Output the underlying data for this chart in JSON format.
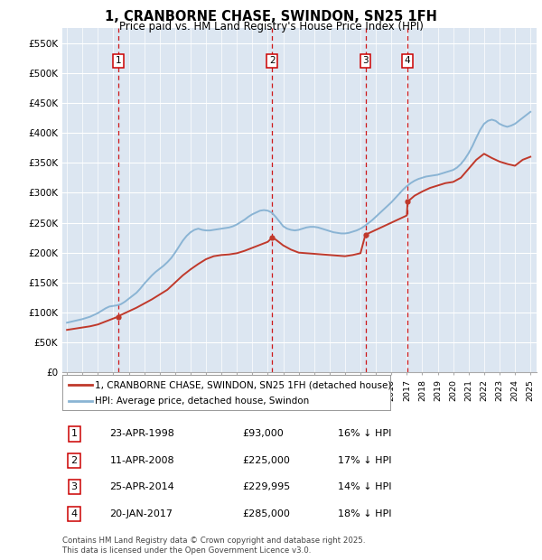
{
  "title": "1, CRANBORNE CHASE, SWINDON, SN25 1FH",
  "subtitle": "Price paid vs. HM Land Registry's House Price Index (HPI)",
  "ylim": [
    0,
    575000
  ],
  "yticks": [
    0,
    50000,
    100000,
    150000,
    200000,
    250000,
    300000,
    350000,
    400000,
    450000,
    500000,
    550000
  ],
  "ytick_labels": [
    "£0",
    "£50K",
    "£100K",
    "£150K",
    "£200K",
    "£250K",
    "£300K",
    "£350K",
    "£400K",
    "£450K",
    "£500K",
    "£550K"
  ],
  "plot_bg_color": "#dce6f1",
  "grid_color": "#ffffff",
  "hpi_color": "#8ab4d4",
  "price_color": "#c0392b",
  "vline_color": "#cc0000",
  "transactions": [
    {
      "num": 1,
      "price": 93000,
      "x": 1998.31
    },
    {
      "num": 2,
      "price": 225000,
      "x": 2008.28
    },
    {
      "num": 3,
      "price": 229995,
      "x": 2014.32
    },
    {
      "num": 4,
      "price": 285000,
      "x": 2017.05
    }
  ],
  "legend_property_label": "1, CRANBORNE CHASE, SWINDON, SN25 1FH (detached house)",
  "legend_hpi_label": "HPI: Average price, detached house, Swindon",
  "footer": "Contains HM Land Registry data © Crown copyright and database right 2025.\nThis data is licensed under the Open Government Licence v3.0.",
  "table_rows": [
    {
      "num": 1,
      "date": "23-APR-1998",
      "price": "£93,000",
      "pct": "16% ↓ HPI"
    },
    {
      "num": 2,
      "date": "11-APR-2008",
      "price": "£225,000",
      "pct": "17% ↓ HPI"
    },
    {
      "num": 3,
      "date": "25-APR-2014",
      "price": "£229,995",
      "pct": "14% ↓ HPI"
    },
    {
      "num": 4,
      "date": "20-JAN-2017",
      "price": "£285,000",
      "pct": "18% ↓ HPI"
    }
  ],
  "hpi_x": [
    1995.0,
    1995.25,
    1995.5,
    1995.75,
    1996.0,
    1996.25,
    1996.5,
    1996.75,
    1997.0,
    1997.25,
    1997.5,
    1997.75,
    1998.0,
    1998.25,
    1998.5,
    1998.75,
    1999.0,
    1999.25,
    1999.5,
    1999.75,
    2000.0,
    2000.25,
    2000.5,
    2000.75,
    2001.0,
    2001.25,
    2001.5,
    2001.75,
    2002.0,
    2002.25,
    2002.5,
    2002.75,
    2003.0,
    2003.25,
    2003.5,
    2003.75,
    2004.0,
    2004.25,
    2004.5,
    2004.75,
    2005.0,
    2005.25,
    2005.5,
    2005.75,
    2006.0,
    2006.25,
    2006.5,
    2006.75,
    2007.0,
    2007.25,
    2007.5,
    2007.75,
    2008.0,
    2008.25,
    2008.5,
    2008.75,
    2009.0,
    2009.25,
    2009.5,
    2009.75,
    2010.0,
    2010.25,
    2010.5,
    2010.75,
    2011.0,
    2011.25,
    2011.5,
    2011.75,
    2012.0,
    2012.25,
    2012.5,
    2012.75,
    2013.0,
    2013.25,
    2013.5,
    2013.75,
    2014.0,
    2014.25,
    2014.5,
    2014.75,
    2015.0,
    2015.25,
    2015.5,
    2015.75,
    2016.0,
    2016.25,
    2016.5,
    2016.75,
    2017.0,
    2017.25,
    2017.5,
    2017.75,
    2018.0,
    2018.25,
    2018.5,
    2018.75,
    2019.0,
    2019.25,
    2019.5,
    2019.75,
    2020.0,
    2020.25,
    2020.5,
    2020.75,
    2021.0,
    2021.25,
    2021.5,
    2021.75,
    2022.0,
    2022.25,
    2022.5,
    2022.75,
    2023.0,
    2023.25,
    2023.5,
    2023.75,
    2024.0,
    2024.25,
    2024.5,
    2024.75,
    2025.0
  ],
  "hpi_y": [
    83000,
    84500,
    86000,
    87500,
    89000,
    91000,
    93000,
    96000,
    99000,
    103000,
    107000,
    110000,
    111000,
    112000,
    114000,
    118000,
    123000,
    128000,
    133000,
    140000,
    148000,
    155000,
    162000,
    168000,
    173000,
    178000,
    184000,
    191000,
    200000,
    210000,
    220000,
    228000,
    234000,
    238000,
    240000,
    238000,
    237000,
    237000,
    238000,
    239000,
    240000,
    241000,
    242000,
    244000,
    247000,
    251000,
    255000,
    260000,
    264000,
    267000,
    270000,
    271000,
    270000,
    267000,
    260000,
    252000,
    244000,
    240000,
    238000,
    237000,
    238000,
    240000,
    242000,
    243000,
    243000,
    242000,
    240000,
    238000,
    236000,
    234000,
    233000,
    232000,
    232000,
    233000,
    235000,
    237000,
    240000,
    244000,
    249000,
    254000,
    260000,
    266000,
    272000,
    278000,
    284000,
    291000,
    298000,
    305000,
    311000,
    316000,
    320000,
    323000,
    325000,
    327000,
    328000,
    329000,
    330000,
    332000,
    334000,
    336000,
    338000,
    342000,
    348000,
    356000,
    366000,
    378000,
    392000,
    405000,
    415000,
    420000,
    422000,
    420000,
    415000,
    412000,
    410000,
    412000,
    415000,
    420000,
    425000,
    430000,
    435000
  ],
  "price_x": [
    1995.0,
    1995.5,
    1996.0,
    1996.5,
    1997.0,
    1997.5,
    1998.0,
    1998.31,
    1998.5,
    1999.0,
    1999.5,
    2000.0,
    2000.5,
    2001.0,
    2001.5,
    2002.0,
    2002.5,
    2003.0,
    2003.5,
    2004.0,
    2004.5,
    2005.0,
    2005.5,
    2006.0,
    2006.5,
    2007.0,
    2007.5,
    2008.0,
    2008.28,
    2008.5,
    2009.0,
    2009.5,
    2010.0,
    2010.5,
    2011.0,
    2011.5,
    2012.0,
    2012.5,
    2013.0,
    2013.5,
    2014.0,
    2014.32,
    2014.5,
    2015.0,
    2015.5,
    2016.0,
    2016.5,
    2017.0,
    2017.05,
    2017.5,
    2018.0,
    2018.5,
    2019.0,
    2019.5,
    2020.0,
    2020.5,
    2021.0,
    2021.5,
    2022.0,
    2022.5,
    2023.0,
    2023.5,
    2024.0,
    2024.5,
    2025.0
  ],
  "price_y": [
    71000,
    73000,
    75000,
    77000,
    80000,
    85000,
    90000,
    93000,
    96000,
    102000,
    108000,
    115000,
    122000,
    130000,
    138000,
    150000,
    162000,
    172000,
    181000,
    189000,
    194000,
    196000,
    197000,
    199000,
    203000,
    208000,
    213000,
    218000,
    225000,
    222000,
    212000,
    205000,
    200000,
    199000,
    198000,
    197000,
    196000,
    195000,
    194000,
    196000,
    199000,
    229995,
    232000,
    238000,
    244000,
    250000,
    256000,
    262000,
    285000,
    295000,
    302000,
    308000,
    312000,
    316000,
    318000,
    325000,
    340000,
    355000,
    365000,
    358000,
    352000,
    348000,
    345000,
    355000,
    360000
  ]
}
